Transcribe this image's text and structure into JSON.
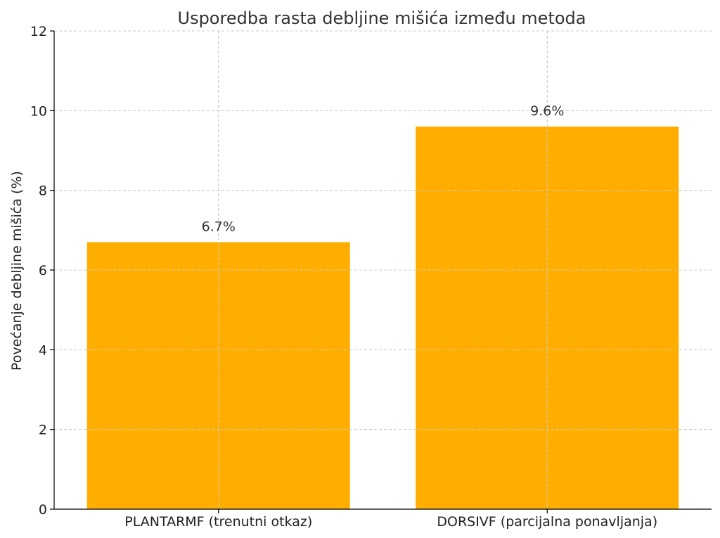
{
  "chart_data": {
    "type": "bar",
    "title": "Usporedba rasta debljine mišića između metoda",
    "xlabel": "",
    "ylabel": "Povećanje debljine mišića (%)",
    "categories": [
      "PLANTARMF (trenutni otkaz)",
      "DORSIVF (parcijalna ponavljanja)"
    ],
    "values": [
      6.7,
      9.6
    ],
    "data_labels": [
      "6.7%",
      "9.6%"
    ],
    "ylim": [
      0,
      12
    ],
    "yticks": [
      0,
      2,
      4,
      6,
      8,
      10,
      12
    ],
    "grid": true,
    "bar_color": "#FFAE00"
  }
}
